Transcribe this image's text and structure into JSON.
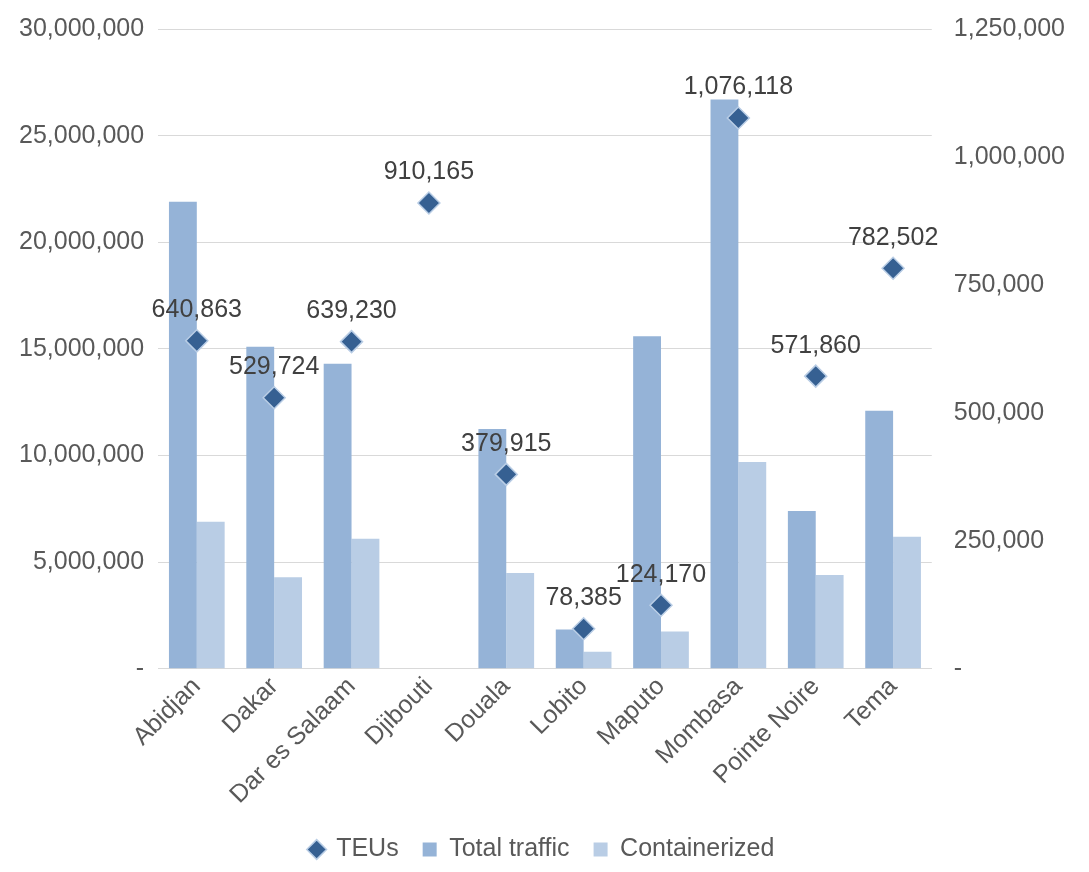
{
  "chart_data": {
    "type": "bar",
    "categories": [
      "Abidjan",
      "Dakar",
      "Dar es Salaam",
      "Djibouti",
      "Douala",
      "Lobito",
      "Maputo",
      "Mombasa",
      "Pointe Noire",
      "Tema"
    ],
    "series": [
      {
        "name": "Total traffic",
        "color": "#95b3d7",
        "values": [
          21900000,
          15100000,
          14300000,
          null,
          11250000,
          1850000,
          15600000,
          26700000,
          7400000,
          12100000
        ]
      },
      {
        "name": "Containerized",
        "color": "#b9cde5",
        "values": [
          6900000,
          4300000,
          6100000,
          null,
          4500000,
          800000,
          1750000,
          9700000,
          4400000,
          6200000
        ]
      },
      {
        "name": "TEUs",
        "type": "scatter",
        "axis": "y2",
        "marker": "diamond",
        "color": "#366092",
        "values": [
          640863,
          529724,
          639230,
          910165,
          379915,
          78385,
          124170,
          1076118,
          571860,
          782502
        ],
        "value_labels": [
          "640,863",
          "529,724",
          "639,230",
          "910,165",
          "379,915",
          "78,385",
          "124,170",
          "1,076,118",
          "571,860",
          "782,502"
        ]
      }
    ],
    "ylim": [
      0,
      30000000
    ],
    "yticks": [
      {
        "value": 0,
        "label": "-"
      },
      {
        "value": 5000000,
        "label": "5,000,000"
      },
      {
        "value": 10000000,
        "label": "10,000,000"
      },
      {
        "value": 15000000,
        "label": "15,000,000"
      },
      {
        "value": 20000000,
        "label": "20,000,000"
      },
      {
        "value": 25000000,
        "label": "25,000,000"
      },
      {
        "value": 30000000,
        "label": "30,000,000"
      }
    ],
    "y2lim": [
      0,
      1250000
    ],
    "y2ticks": [
      {
        "value": 0,
        "label": "-"
      },
      {
        "value": 250000,
        "label": "250,000"
      },
      {
        "value": 500000,
        "label": "500,000"
      },
      {
        "value": 750000,
        "label": "750,000"
      },
      {
        "value": 1000000,
        "label": "1,000,000"
      },
      {
        "value": 1250000,
        "label": "1,250,000"
      }
    ],
    "grid": "y",
    "legend": "bottom"
  }
}
